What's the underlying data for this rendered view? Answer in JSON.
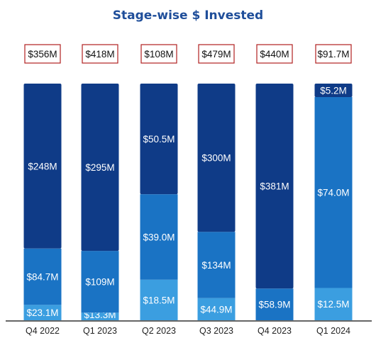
{
  "chart_data": {
    "type": "bar",
    "stacked": true,
    "title": "Stage-wise $ Invested",
    "categories": [
      "Q4 2022",
      "Q1 2023",
      "Q2 2023",
      "Q3 2023",
      "Q4 2023",
      "Q1 2024"
    ],
    "totals": [
      "$356M",
      "$418M",
      "$108M",
      "$479M",
      "$440M",
      "$91.7M"
    ],
    "series": [
      {
        "values": [
          23.1,
          13.3,
          18.5,
          44.9,
          0,
          12.5
        ],
        "labels": [
          "$23.1M",
          "$13.3M",
          "$18.5M",
          "$44.9M",
          "",
          "$12.5M"
        ],
        "color": "#3b9ee0"
      },
      {
        "values": [
          84.7,
          109,
          39.0,
          134,
          58.9,
          74.0
        ],
        "labels": [
          "$84.7M",
          "$109M",
          "$39.0M",
          "$134M",
          "$58.9M",
          "$74.0M"
        ],
        "color": "#1a73c4"
      },
      {
        "values": [
          248,
          295,
          50.5,
          300,
          381,
          5.2
        ],
        "labels": [
          "$248M",
          "$295M",
          "$50.5M",
          "$300M",
          "$381M",
          "$5.2M"
        ],
        "color": "#0f3b87"
      }
    ],
    "normalized": true,
    "grid": false,
    "legend": "none",
    "colors": {
      "title": "#1f4e9a",
      "total_box_border": "#b02020"
    }
  }
}
